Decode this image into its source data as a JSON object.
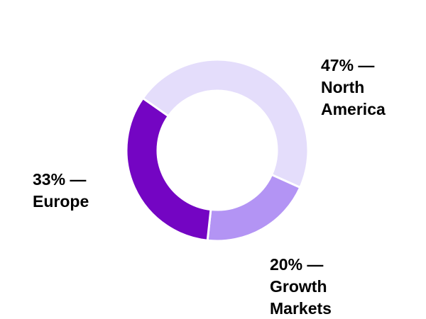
{
  "chart_data": {
    "type": "donut",
    "values": [
      47,
      20,
      33
    ],
    "value_labels": [
      "47% — North America",
      "20% — Growth Markets",
      "33% — Europe"
    ],
    "colors": [
      "#e4ddfb",
      "#b394f4",
      "#7405c3"
    ]
  }
}
